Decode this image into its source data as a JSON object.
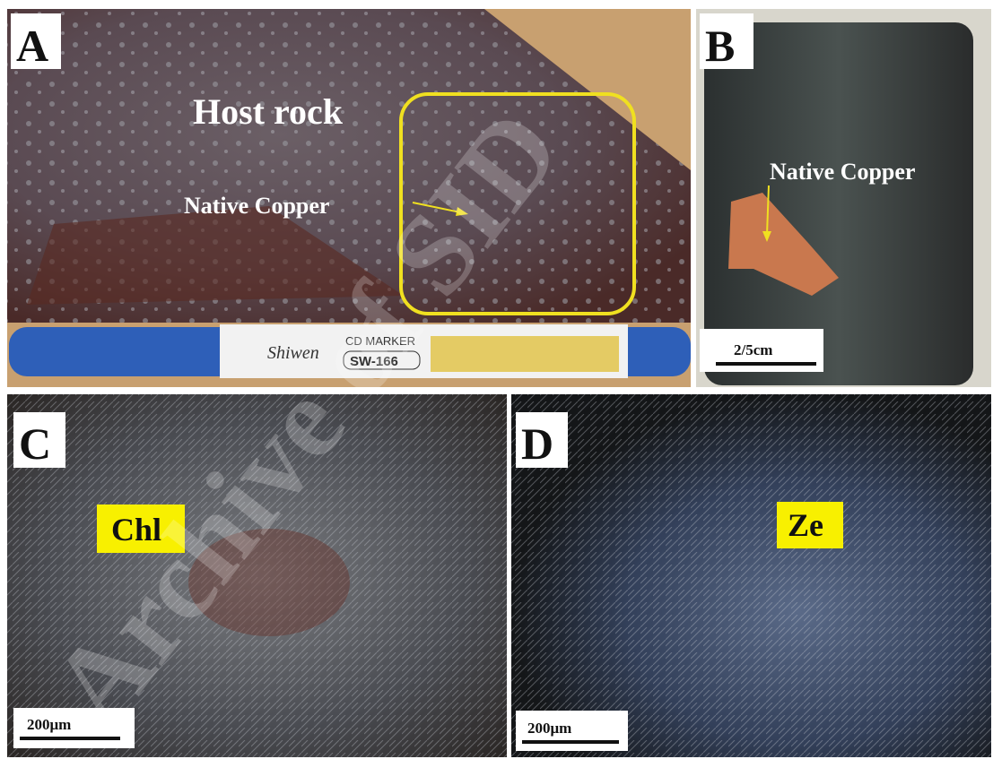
{
  "panels": [
    {
      "label": "A",
      "annotations": [
        "Host rock",
        "Native Copper"
      ],
      "marker": [
        "Shiwen",
        "CD MARKER",
        "SW-166"
      ]
    },
    {
      "label": "B",
      "annotations": [
        "Native Copper"
      ],
      "scale": "2/5cm"
    },
    {
      "label": "C",
      "annotations": [
        "Chl"
      ],
      "scale": "200μm"
    },
    {
      "label": "D",
      "annotations": [
        "Ze"
      ],
      "scale": "200μm"
    }
  ],
  "watermark": "Archive of SID"
}
